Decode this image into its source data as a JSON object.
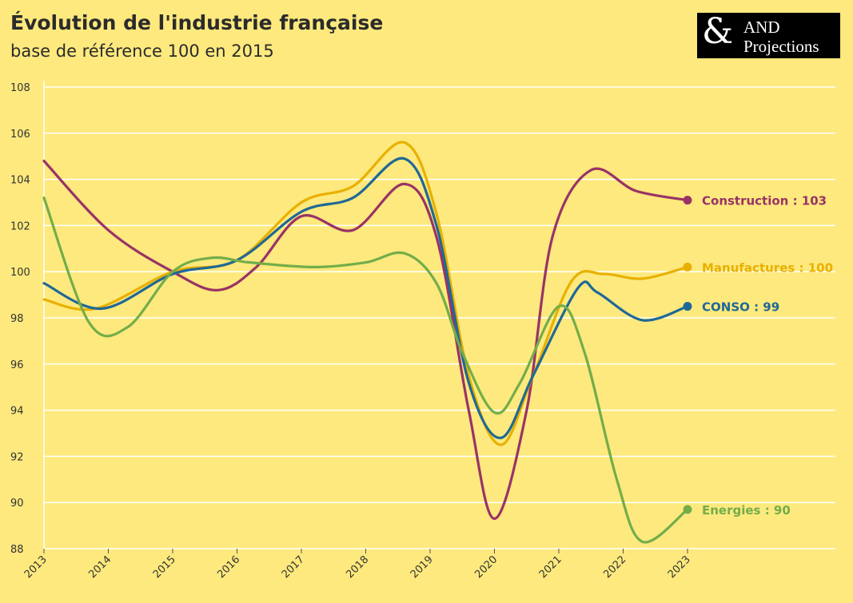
{
  "header": {
    "title": "Évolution de l'industrie française",
    "subtitle": "base de référence 100 en 2015"
  },
  "logo": {
    "symbol": "&",
    "line1": "AND",
    "line2": "Projections"
  },
  "chart_data": {
    "type": "line",
    "title": "Évolution de l'industrie française",
    "subtitle": "base de référence 100 en 2015",
    "xlabel": "",
    "ylabel": "",
    "x": [
      2013,
      2014,
      2015,
      2016,
      2017,
      2018,
      2019,
      2020,
      2021,
      2022,
      2023
    ],
    "ylim": [
      88,
      108
    ],
    "yticks": [
      88,
      90,
      92,
      94,
      96,
      98,
      100,
      102,
      104,
      106,
      108
    ],
    "grid": true,
    "legend": "end-of-line labels",
    "series": [
      {
        "name": "Construction",
        "label": "Construction : 103",
        "color": "#993366",
        "points": [
          [
            2013,
            104.8
          ],
          [
            2014,
            101.8
          ],
          [
            2015,
            100.0
          ],
          [
            2015.7,
            99.2
          ],
          [
            2016.3,
            100.2
          ],
          [
            2017,
            102.4
          ],
          [
            2017.8,
            101.8
          ],
          [
            2018.6,
            103.8
          ],
          [
            2019.1,
            101.5
          ],
          [
            2019.6,
            94.0
          ],
          [
            2020,
            89.3
          ],
          [
            2020.5,
            94.0
          ],
          [
            2020.9,
            101.5
          ],
          [
            2021.5,
            104.4
          ],
          [
            2022.2,
            103.5
          ],
          [
            2023,
            103.1
          ]
        ]
      },
      {
        "name": "Manufactures",
        "label": "Manufactures : 100",
        "color": "#e8b000",
        "points": [
          [
            2013,
            98.8
          ],
          [
            2013.8,
            98.4
          ],
          [
            2015,
            100.0
          ],
          [
            2016,
            100.5
          ],
          [
            2017,
            103.0
          ],
          [
            2017.8,
            103.7
          ],
          [
            2018.6,
            105.6
          ],
          [
            2019.1,
            102.5
          ],
          [
            2019.6,
            95.5
          ],
          [
            2020.1,
            92.5
          ],
          [
            2020.6,
            95.5
          ],
          [
            2021.2,
            99.6
          ],
          [
            2021.7,
            99.9
          ],
          [
            2022.3,
            99.7
          ],
          [
            2023,
            100.2
          ]
        ]
      },
      {
        "name": "CONSO",
        "label": "CONSO : 99",
        "color": "#1f6896",
        "points": [
          [
            2013,
            99.5
          ],
          [
            2013.9,
            98.4
          ],
          [
            2015,
            99.9
          ],
          [
            2016,
            100.5
          ],
          [
            2017,
            102.6
          ],
          [
            2017.8,
            103.2
          ],
          [
            2018.6,
            104.9
          ],
          [
            2019.1,
            102.0
          ],
          [
            2019.6,
            95.2
          ],
          [
            2020.1,
            92.8
          ],
          [
            2020.6,
            95.5
          ],
          [
            2021.3,
            99.3
          ],
          [
            2021.6,
            99.1
          ],
          [
            2022.3,
            97.9
          ],
          [
            2023,
            98.5
          ]
        ]
      },
      {
        "name": "Energies",
        "label": "Energies : 90",
        "color": "#73ad4a",
        "points": [
          [
            2013,
            103.2
          ],
          [
            2013.7,
            97.8
          ],
          [
            2014.3,
            97.6
          ],
          [
            2015,
            100.0
          ],
          [
            2015.6,
            100.6
          ],
          [
            2016.2,
            100.4
          ],
          [
            2017.2,
            100.2
          ],
          [
            2018,
            100.4
          ],
          [
            2018.6,
            100.8
          ],
          [
            2019.1,
            99.5
          ],
          [
            2019.5,
            96.5
          ],
          [
            2020,
            93.9
          ],
          [
            2020.4,
            95.2
          ],
          [
            2021,
            98.5
          ],
          [
            2021.4,
            96.5
          ],
          [
            2021.9,
            91.0
          ],
          [
            2022.3,
            88.3
          ],
          [
            2023,
            89.7
          ]
        ]
      }
    ]
  },
  "colors": {
    "background": "#fde97d",
    "grid": "#ffffff",
    "text": "#2b2b2b"
  }
}
